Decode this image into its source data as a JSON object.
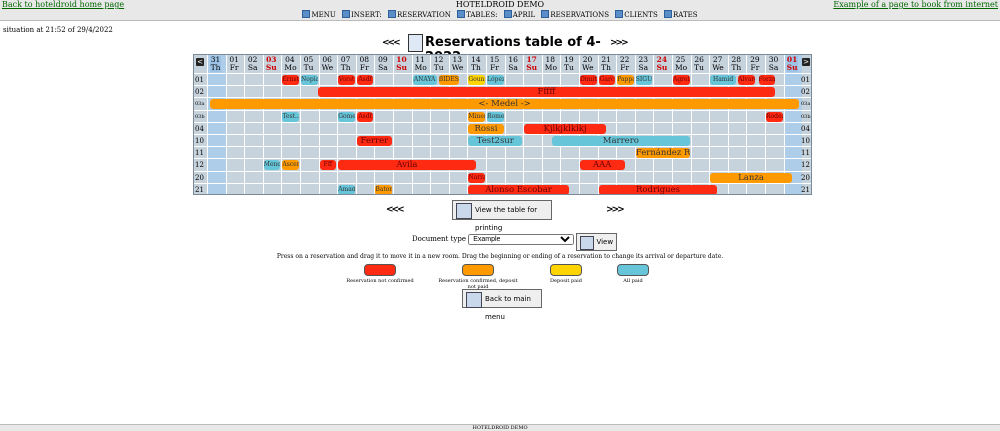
{
  "topbar": {
    "left_link": "Back to hoteldroid home page",
    "title": "HOTELDROID DEMO",
    "right_link": "Example of a page to book from internet"
  },
  "menu": [
    "MENU",
    "INSERT:",
    "RESERVATION",
    "TABLES:",
    "APRIL",
    "RESERVATIONS",
    "CLIENTS",
    "RATES"
  ],
  "situation": "situation at 21:52 of 29/4/2022",
  "table_title": "Reservations table of 4-2022.",
  "days": [
    {
      "n": "31",
      "d": "Th",
      "we": false,
      "hl": true
    },
    {
      "n": "01",
      "d": "Fr",
      "we": false
    },
    {
      "n": "02",
      "d": "Sa",
      "we": false
    },
    {
      "n": "03",
      "d": "Su",
      "we": true
    },
    {
      "n": "04",
      "d": "Mo",
      "we": false
    },
    {
      "n": "05",
      "d": "Tu",
      "we": false
    },
    {
      "n": "06",
      "d": "We",
      "we": false
    },
    {
      "n": "07",
      "d": "Th",
      "we": false
    },
    {
      "n": "08",
      "d": "Fr",
      "we": false
    },
    {
      "n": "09",
      "d": "Sa",
      "we": false
    },
    {
      "n": "10",
      "d": "Su",
      "we": true
    },
    {
      "n": "11",
      "d": "Mo",
      "we": false
    },
    {
      "n": "12",
      "d": "Tu",
      "we": false
    },
    {
      "n": "13",
      "d": "We",
      "we": false
    },
    {
      "n": "14",
      "d": "Th",
      "we": false
    },
    {
      "n": "15",
      "d": "Fr",
      "we": false
    },
    {
      "n": "16",
      "d": "Sa",
      "we": false
    },
    {
      "n": "17",
      "d": "Su",
      "we": true
    },
    {
      "n": "18",
      "d": "Mo",
      "we": false
    },
    {
      "n": "19",
      "d": "Tu",
      "we": false
    },
    {
      "n": "20",
      "d": "We",
      "we": false
    },
    {
      "n": "21",
      "d": "Th",
      "we": false
    },
    {
      "n": "22",
      "d": "Fr",
      "we": false
    },
    {
      "n": "23",
      "d": "Sa",
      "we": false
    },
    {
      "n": "24",
      "d": "Su",
      "we": true
    },
    {
      "n": "25",
      "d": "Mo",
      "we": false
    },
    {
      "n": "26",
      "d": "Tu",
      "we": false
    },
    {
      "n": "27",
      "d": "We",
      "we": false
    },
    {
      "n": "28",
      "d": "Th",
      "we": false
    },
    {
      "n": "29",
      "d": "Fr",
      "we": false
    },
    {
      "n": "30",
      "d": "Sa",
      "we": false
    },
    {
      "n": "01",
      "d": "Su",
      "we": true,
      "hl": true
    }
  ],
  "rooms": [
    "01",
    "02",
    "03a",
    "03b",
    "04",
    "10",
    "11",
    "12",
    "20",
    "21"
  ],
  "reservations": [
    {
      "room": 0,
      "start": 4,
      "len": 1,
      "label": "Ernst",
      "color": "red"
    },
    {
      "room": 0,
      "start": 5,
      "len": 1,
      "label": "Nopia",
      "color": "blue"
    },
    {
      "room": 0,
      "start": 7,
      "len": 1,
      "label": "Vorst",
      "color": "red"
    },
    {
      "room": 0,
      "start": 8,
      "len": 1,
      "label": "Asdf",
      "color": "red"
    },
    {
      "room": 0,
      "start": 11,
      "len": 1.4,
      "label": "ANAYA",
      "color": "blue"
    },
    {
      "room": 0,
      "start": 12.4,
      "len": 1.2,
      "label": "BIDES",
      "color": "orange"
    },
    {
      "room": 0,
      "start": 14,
      "len": 1,
      "label": "Gounik",
      "color": "yellow"
    },
    {
      "room": 0,
      "start": 15,
      "len": 1,
      "label": "López",
      "color": "blue"
    },
    {
      "room": 0,
      "start": 20,
      "len": 1,
      "label": "Dimitri",
      "color": "red"
    },
    {
      "room": 0,
      "start": 21,
      "len": 1,
      "label": "Garc",
      "color": "red"
    },
    {
      "room": 0,
      "start": 22,
      "len": 1,
      "label": "Pappas",
      "color": "orange"
    },
    {
      "room": 0,
      "start": 23,
      "len": 1,
      "label": "SIGUE",
      "color": "blue"
    },
    {
      "room": 0,
      "start": 25,
      "len": 1,
      "label": "Agrell",
      "color": "red"
    },
    {
      "room": 0,
      "start": 27,
      "len": 1.5,
      "label": "Hamid",
      "color": "blue"
    },
    {
      "room": 0,
      "start": 28.5,
      "len": 1,
      "label": "Alvarez",
      "color": "red"
    },
    {
      "room": 0,
      "start": 29.6,
      "len": 1,
      "label": "Forza",
      "color": "red"
    },
    {
      "room": 1,
      "start": 5.9,
      "len": 24.7,
      "label": "Fffff",
      "color": "red"
    },
    {
      "room": 2,
      "start": 0.1,
      "len": 31.8,
      "label": "<- Medel ->",
      "color": "orange"
    },
    {
      "room": 3,
      "start": 4,
      "len": 1,
      "label": "Test..",
      "color": "blue"
    },
    {
      "room": 3,
      "start": 7,
      "len": 1,
      "label": "Gomez",
      "color": "blue"
    },
    {
      "room": 3,
      "start": 8,
      "len": 1,
      "label": "Asdf",
      "color": "red"
    },
    {
      "room": 3,
      "start": 14,
      "len": 1,
      "label": "Miner",
      "color": "orange"
    },
    {
      "room": 3,
      "start": 15,
      "len": 1,
      "label": "Romer",
      "color": "blue"
    },
    {
      "room": 3,
      "start": 30,
      "len": 1,
      "label": "Rodez",
      "color": "red"
    },
    {
      "room": 4,
      "start": 14,
      "len": 2,
      "label": "Rossi",
      "color": "orange"
    },
    {
      "room": 4,
      "start": 17,
      "len": 4.5,
      "label": "Kjlkjklklkj",
      "color": "red"
    },
    {
      "room": 5,
      "start": 8,
      "len": 2,
      "label": "Ferrer",
      "color": "red"
    },
    {
      "room": 5,
      "start": 14,
      "len": 3,
      "label": "Test2sur",
      "color": "blue"
    },
    {
      "room": 5,
      "start": 18.5,
      "len": 7.5,
      "label": "Marrero",
      "color": "blue"
    },
    {
      "room": 6,
      "start": 23,
      "len": 3,
      "label": "Fernández Romero",
      "color": "orange"
    },
    {
      "room": 7,
      "start": 3,
      "len": 1,
      "label": "Mendo.",
      "color": "blue"
    },
    {
      "room": 7,
      "start": 4,
      "len": 1,
      "label": "Ascen",
      "color": "orange"
    },
    {
      "room": 7,
      "start": 6,
      "len": 1,
      "label": "Fff",
      "color": "red"
    },
    {
      "room": 7,
      "start": 7,
      "len": 7.5,
      "label": "Ávila",
      "color": "red"
    },
    {
      "room": 7,
      "start": 20,
      "len": 2.5,
      "label": "AAA",
      "color": "red"
    },
    {
      "room": 8,
      "start": 14,
      "len": 1,
      "label": "Narras",
      "color": "red"
    },
    {
      "room": 8,
      "start": 27,
      "len": 4.5,
      "label": "Lanza",
      "color": "orange"
    },
    {
      "room": 9,
      "start": 7,
      "len": 1,
      "label": "Amada",
      "color": "blue"
    },
    {
      "room": 9,
      "start": 9,
      "len": 1,
      "label": "Batom",
      "color": "orange"
    },
    {
      "room": 9,
      "start": 14,
      "len": 5.5,
      "label": "Alonso Escobar",
      "color": "red"
    },
    {
      "room": 9,
      "start": 21,
      "len": 6.5,
      "label": "Rodrigues",
      "color": "red"
    }
  ],
  "print_button": "View the table for printing",
  "doctype": {
    "label": "Document type",
    "value": "Example",
    "view": "View"
  },
  "help": "Press on a reservation and drag it to move it in a new room. Drag the beginning or ending of a reservation to change its arrival or departure date.",
  "legend": [
    {
      "label": "Reservation not confirmed",
      "color": "#ff2a12"
    },
    {
      "label": "Reservation confirmed, deposit not paid",
      "color": "#ff9900"
    },
    {
      "label": "Deposit paid",
      "color": "#ffd400"
    },
    {
      "label": "All paid",
      "color": "#66c5d9"
    }
  ],
  "main_menu_button": "Back to main menu",
  "bottombar": "HOTELDROID DEMO"
}
